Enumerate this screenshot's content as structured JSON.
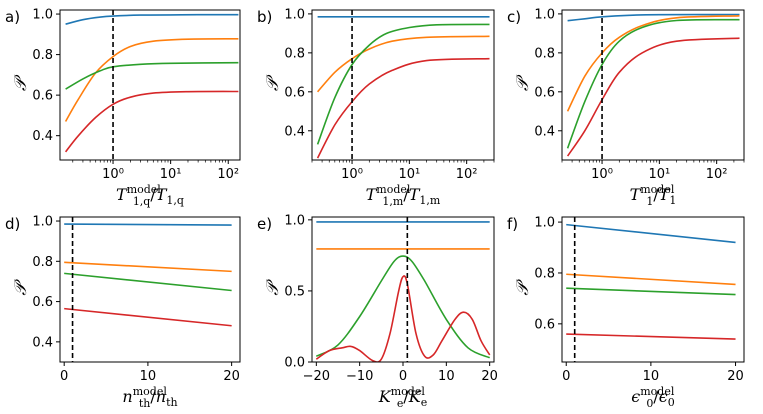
{
  "colors": {
    "blue": "#1f77b4",
    "orange": "#ff7f0e",
    "green": "#2ca02c",
    "red": "#d62728"
  },
  "chart_data": [
    {
      "id": "a",
      "panel_label": "a)",
      "type": "line",
      "xscale": "log",
      "xlim": [
        0.12,
        160
      ],
      "ylim": [
        0.28,
        1.02
      ],
      "xticks": [
        1,
        10,
        100
      ],
      "xtick_labels": [
        "10⁰",
        "10¹",
        "10²"
      ],
      "yticks": [
        0.4,
        0.6,
        0.8,
        1.0
      ],
      "ytick_labels": [
        "0.4",
        "0.6",
        "0.8",
        "1.0"
      ],
      "ylabel": "𝒫",
      "xlabel": {
        "num": "T",
        "num_sup": "model",
        "num_sub": "1,q",
        "den": "T",
        "den_sub": "1,q"
      },
      "vline_x": 1,
      "series": [
        {
          "color": "blue",
          "x": [
            0.15,
            0.3,
            0.6,
            1,
            3,
            10,
            30,
            150
          ],
          "y": [
            0.95,
            0.972,
            0.985,
            0.99,
            0.995,
            0.996,
            0.997,
            0.997
          ]
        },
        {
          "color": "orange",
          "x": [
            0.15,
            0.25,
            0.5,
            1,
            2,
            5,
            20,
            150
          ],
          "y": [
            0.47,
            0.58,
            0.71,
            0.79,
            0.84,
            0.866,
            0.876,
            0.878
          ]
        },
        {
          "color": "green",
          "x": [
            0.15,
            0.3,
            0.6,
            1,
            3,
            10,
            150
          ],
          "y": [
            0.63,
            0.68,
            0.72,
            0.74,
            0.752,
            0.757,
            0.76
          ]
        },
        {
          "color": "red",
          "x": [
            0.15,
            0.25,
            0.5,
            1,
            2,
            5,
            20,
            150
          ],
          "y": [
            0.32,
            0.4,
            0.49,
            0.555,
            0.59,
            0.61,
            0.617,
            0.618
          ]
        }
      ]
    },
    {
      "id": "b",
      "panel_label": "b)",
      "type": "line",
      "xscale": "log",
      "xlim": [
        0.2,
        300
      ],
      "ylim": [
        0.25,
        1.02
      ],
      "xticks": [
        1,
        10,
        100
      ],
      "xtick_labels": [
        "10⁰",
        "10¹",
        "10²"
      ],
      "yticks": [
        0.4,
        0.6,
        0.8,
        1.0
      ],
      "ytick_labels": [
        "0.4",
        "0.6",
        "0.8",
        "1.0"
      ],
      "ylabel": "𝒫",
      "xlabel": {
        "num": "T",
        "num_sup": "model",
        "num_sub": "1,m",
        "den": "T",
        "den_sub": "1,m"
      },
      "vline_x": 1,
      "series": [
        {
          "color": "blue",
          "x": [
            0.25,
            1,
            10,
            250
          ],
          "y": [
            0.985,
            0.985,
            0.985,
            0.985
          ]
        },
        {
          "color": "orange",
          "x": [
            0.25,
            0.5,
            1,
            2,
            5,
            20,
            250
          ],
          "y": [
            0.6,
            0.7,
            0.77,
            0.82,
            0.86,
            0.88,
            0.885
          ]
        },
        {
          "color": "green",
          "x": [
            0.25,
            0.5,
            1,
            2,
            4,
            10,
            30,
            250
          ],
          "y": [
            0.33,
            0.57,
            0.74,
            0.84,
            0.9,
            0.93,
            0.944,
            0.946
          ]
        },
        {
          "color": "red",
          "x": [
            0.25,
            0.5,
            1,
            2,
            5,
            20,
            250
          ],
          "y": [
            0.26,
            0.43,
            0.55,
            0.64,
            0.71,
            0.76,
            0.77
          ]
        }
      ]
    },
    {
      "id": "c",
      "panel_label": "c)",
      "type": "line",
      "xscale": "log",
      "xlim": [
        0.2,
        300
      ],
      "ylim": [
        0.25,
        1.02
      ],
      "xticks": [
        1,
        10,
        100
      ],
      "xtick_labels": [
        "10⁰",
        "10¹",
        "10²"
      ],
      "yticks": [
        0.4,
        0.6,
        0.8,
        1.0
      ],
      "ytick_labels": [
        "0.4",
        "0.6",
        "0.8",
        "1.0"
      ],
      "ylabel": "𝒫",
      "xlabel": {
        "num": "T",
        "num_sup": "model",
        "num_sub": "1",
        "den": "T",
        "den_sub": "1"
      },
      "vline_x": 1,
      "series": [
        {
          "color": "blue",
          "x": [
            0.25,
            0.5,
            1,
            3,
            10,
            250
          ],
          "y": [
            0.965,
            0.975,
            0.985,
            0.993,
            0.996,
            0.997
          ]
        },
        {
          "color": "orange",
          "x": [
            0.25,
            0.5,
            1,
            2,
            5,
            20,
            250
          ],
          "y": [
            0.5,
            0.68,
            0.8,
            0.88,
            0.94,
            0.98,
            0.99
          ]
        },
        {
          "color": "green",
          "x": [
            0.25,
            0.5,
            1,
            2,
            5,
            20,
            250
          ],
          "y": [
            0.31,
            0.55,
            0.74,
            0.86,
            0.93,
            0.966,
            0.97
          ]
        },
        {
          "color": "red",
          "x": [
            0.25,
            0.5,
            1,
            2,
            5,
            20,
            250
          ],
          "y": [
            0.27,
            0.4,
            0.56,
            0.7,
            0.8,
            0.86,
            0.875
          ]
        }
      ]
    },
    {
      "id": "d",
      "panel_label": "d)",
      "type": "line",
      "xscale": "linear",
      "xlim": [
        -0.5,
        21
      ],
      "ylim": [
        0.3,
        1.02
      ],
      "xticks": [
        0,
        10,
        20
      ],
      "xtick_labels": [
        "0",
        "10",
        "20"
      ],
      "yticks": [
        0.4,
        0.6,
        0.8,
        1.0
      ],
      "ytick_labels": [
        "0.4",
        "0.6",
        "0.8",
        "1.0"
      ],
      "ylabel": "𝒫",
      "xlabel": {
        "num": "n",
        "num_sup": "model",
        "num_sub": "th",
        "den": "n",
        "den_sub": "th"
      },
      "vline_x": 1,
      "series": [
        {
          "color": "blue",
          "x": [
            0,
            20
          ],
          "y": [
            0.985,
            0.98
          ]
        },
        {
          "color": "orange",
          "x": [
            0,
            20
          ],
          "y": [
            0.795,
            0.75
          ]
        },
        {
          "color": "green",
          "x": [
            0,
            20
          ],
          "y": [
            0.74,
            0.655
          ]
        },
        {
          "color": "red",
          "x": [
            0,
            20
          ],
          "y": [
            0.565,
            0.48
          ]
        }
      ]
    },
    {
      "id": "e",
      "panel_label": "e)",
      "type": "line",
      "xscale": "linear",
      "xlim": [
        -21,
        21
      ],
      "ylim": [
        0,
        1.02
      ],
      "xticks": [
        -20,
        -10,
        0,
        10,
        20
      ],
      "xtick_labels": [
        "−20",
        "−10",
        "0",
        "10",
        "20"
      ],
      "yticks": [
        0,
        0.5,
        1.0
      ],
      "ytick_labels": [
        "0.0",
        "0.5",
        "1.0"
      ],
      "ylabel": "𝒫",
      "xlabel": {
        "num": "K",
        "num_sup": "model",
        "num_sub": "e",
        "den": "K",
        "den_sub": "e"
      },
      "vline_x": 1,
      "series": [
        {
          "color": "blue",
          "x": [
            -20,
            20
          ],
          "y": [
            0.985,
            0.985
          ]
        },
        {
          "color": "orange",
          "x": [
            -20,
            20
          ],
          "y": [
            0.795,
            0.795
          ]
        },
        {
          "color": "green",
          "x": [
            -20,
            -15,
            -10,
            -5,
            -2,
            0,
            2,
            5,
            10,
            15,
            20
          ],
          "y": [
            0.04,
            0.12,
            0.32,
            0.57,
            0.71,
            0.745,
            0.71,
            0.57,
            0.3,
            0.1,
            0.03
          ]
        },
        {
          "color": "red",
          "x": [
            -20,
            -17,
            -14,
            -12,
            -10,
            -7,
            -5,
            -3,
            -1,
            0,
            1,
            3,
            5,
            7,
            9,
            12,
            14,
            16,
            18,
            20
          ],
          "y": [
            0.02,
            0.08,
            0.1,
            0.11,
            0.08,
            0.01,
            0.02,
            0.2,
            0.5,
            0.6,
            0.55,
            0.2,
            0.04,
            0.05,
            0.15,
            0.3,
            0.35,
            0.3,
            0.15,
            0.05
          ]
        }
      ]
    },
    {
      "id": "f",
      "panel_label": "f)",
      "type": "line",
      "xscale": "linear",
      "xlim": [
        -0.5,
        21
      ],
      "ylim": [
        0.45,
        1.02
      ],
      "xticks": [
        0,
        10,
        20
      ],
      "xtick_labels": [
        "0",
        "10",
        "20"
      ],
      "yticks": [
        0.6,
        0.8,
        1.0
      ],
      "ytick_labels": [
        "0.6",
        "0.8",
        "1.0"
      ],
      "ylabel": "𝒫",
      "xlabel": {
        "num": "ϵ",
        "num_sup": "model",
        "num_sub": "0",
        "den": "ϵ",
        "den_sub": "0"
      },
      "vline_x": 1,
      "series": [
        {
          "color": "blue",
          "x": [
            0,
            20
          ],
          "y": [
            0.99,
            0.92
          ]
        },
        {
          "color": "orange",
          "x": [
            0,
            20
          ],
          "y": [
            0.795,
            0.755
          ]
        },
        {
          "color": "green",
          "x": [
            0,
            20
          ],
          "y": [
            0.74,
            0.715
          ]
        },
        {
          "color": "red",
          "x": [
            0,
            20
          ],
          "y": [
            0.56,
            0.54
          ]
        }
      ]
    }
  ]
}
